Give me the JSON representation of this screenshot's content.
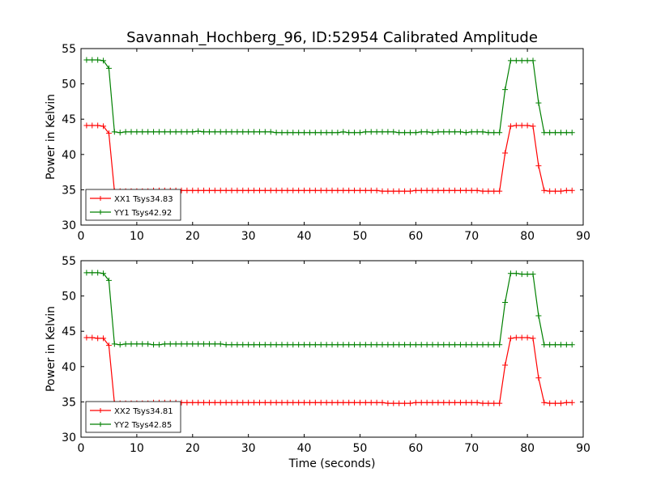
{
  "title": "Savannah_Hochberg_96, ID:52954 Calibrated Amplitude",
  "colors": {
    "xx": "#ff0000",
    "yy": "#008000"
  },
  "chart_data": [
    {
      "type": "line",
      "xlabel": "",
      "ylabel": "Power in Kelvin",
      "xlim": [
        0,
        90
      ],
      "ylim": [
        30,
        55
      ],
      "xticks": [
        0,
        10,
        20,
        30,
        40,
        50,
        60,
        70,
        80,
        90
      ],
      "yticks": [
        30,
        35,
        40,
        45,
        50,
        55
      ],
      "grid": false,
      "legend_position": "lower-left",
      "x": [
        1,
        2,
        3,
        4,
        5,
        6,
        7,
        8,
        9,
        10,
        11,
        12,
        13,
        14,
        15,
        16,
        17,
        18,
        19,
        20,
        21,
        22,
        23,
        24,
        25,
        26,
        27,
        28,
        29,
        30,
        31,
        32,
        33,
        34,
        35,
        36,
        37,
        38,
        39,
        40,
        41,
        42,
        43,
        44,
        45,
        46,
        47,
        48,
        49,
        50,
        51,
        52,
        53,
        54,
        55,
        56,
        57,
        58,
        59,
        60,
        61,
        62,
        63,
        64,
        65,
        66,
        67,
        68,
        69,
        70,
        71,
        72,
        73,
        74,
        75,
        76,
        77,
        78,
        79,
        80,
        81,
        82,
        83,
        84,
        85,
        86,
        87,
        88
      ],
      "series": [
        {
          "name": "XX1 Tsys34.83",
          "color": "#ff0000",
          "values": [
            44.1,
            44.1,
            44.1,
            44.0,
            43.0,
            34.8,
            34.8,
            34.8,
            34.8,
            34.8,
            34.8,
            34.8,
            34.9,
            34.9,
            34.9,
            34.9,
            34.9,
            34.9,
            34.9,
            34.9,
            34.9,
            34.9,
            34.9,
            34.9,
            34.9,
            34.9,
            34.9,
            34.9,
            34.9,
            34.9,
            34.9,
            34.9,
            34.9,
            34.9,
            34.9,
            34.9,
            34.9,
            34.9,
            34.9,
            34.9,
            34.9,
            34.9,
            34.9,
            34.9,
            34.9,
            34.9,
            34.9,
            34.9,
            34.9,
            34.9,
            34.9,
            34.9,
            34.9,
            34.8,
            34.8,
            34.8,
            34.8,
            34.8,
            34.8,
            34.9,
            34.9,
            34.9,
            34.9,
            34.9,
            34.9,
            34.9,
            34.9,
            34.9,
            34.9,
            34.9,
            34.9,
            34.8,
            34.8,
            34.8,
            34.8,
            40.2,
            44.0,
            44.1,
            44.1,
            44.1,
            44.0,
            38.4,
            34.9,
            34.8,
            34.8,
            34.8,
            34.9,
            34.9
          ]
        },
        {
          "name": "YY1 Tsys42.92",
          "color": "#008000",
          "values": [
            53.4,
            53.4,
            53.4,
            53.3,
            52.2,
            43.2,
            43.1,
            43.2,
            43.2,
            43.2,
            43.2,
            43.2,
            43.2,
            43.2,
            43.2,
            43.2,
            43.2,
            43.2,
            43.2,
            43.2,
            43.3,
            43.2,
            43.2,
            43.2,
            43.2,
            43.2,
            43.2,
            43.2,
            43.2,
            43.2,
            43.2,
            43.2,
            43.2,
            43.2,
            43.1,
            43.1,
            43.1,
            43.1,
            43.1,
            43.1,
            43.1,
            43.1,
            43.1,
            43.1,
            43.1,
            43.1,
            43.2,
            43.1,
            43.1,
            43.1,
            43.2,
            43.2,
            43.2,
            43.2,
            43.2,
            43.2,
            43.1,
            43.1,
            43.1,
            43.1,
            43.2,
            43.2,
            43.1,
            43.2,
            43.2,
            43.2,
            43.2,
            43.2,
            43.1,
            43.2,
            43.2,
            43.2,
            43.1,
            43.1,
            43.1,
            49.2,
            53.3,
            53.3,
            53.3,
            53.3,
            53.3,
            47.3,
            43.1,
            43.1,
            43.1,
            43.1,
            43.1,
            43.1
          ]
        }
      ]
    },
    {
      "type": "line",
      "xlabel": "Time (seconds)",
      "ylabel": "Power in Kelvin",
      "xlim": [
        0,
        90
      ],
      "ylim": [
        30,
        55
      ],
      "xticks": [
        0,
        10,
        20,
        30,
        40,
        50,
        60,
        70,
        80,
        90
      ],
      "yticks": [
        30,
        35,
        40,
        45,
        50,
        55
      ],
      "grid": false,
      "legend_position": "lower-left",
      "x": [
        1,
        2,
        3,
        4,
        5,
        6,
        7,
        8,
        9,
        10,
        11,
        12,
        13,
        14,
        15,
        16,
        17,
        18,
        19,
        20,
        21,
        22,
        23,
        24,
        25,
        26,
        27,
        28,
        29,
        30,
        31,
        32,
        33,
        34,
        35,
        36,
        37,
        38,
        39,
        40,
        41,
        42,
        43,
        44,
        45,
        46,
        47,
        48,
        49,
        50,
        51,
        52,
        53,
        54,
        55,
        56,
        57,
        58,
        59,
        60,
        61,
        62,
        63,
        64,
        65,
        66,
        67,
        68,
        69,
        70,
        71,
        72,
        73,
        74,
        75,
        76,
        77,
        78,
        79,
        80,
        81,
        82,
        83,
        84,
        85,
        86,
        87,
        88
      ],
      "series": [
        {
          "name": "XX2 Tsys34.81",
          "color": "#ff0000",
          "values": [
            44.1,
            44.1,
            44.0,
            44.0,
            43.0,
            34.8,
            34.8,
            34.8,
            34.8,
            34.8,
            34.8,
            34.8,
            34.9,
            34.9,
            34.9,
            34.9,
            34.9,
            34.9,
            34.9,
            34.9,
            34.9,
            34.9,
            34.9,
            34.9,
            34.9,
            34.9,
            34.9,
            34.9,
            34.9,
            34.9,
            34.9,
            34.9,
            34.9,
            34.9,
            34.9,
            34.9,
            34.9,
            34.9,
            34.9,
            34.9,
            34.9,
            34.9,
            34.9,
            34.9,
            34.9,
            34.9,
            34.9,
            34.9,
            34.9,
            34.9,
            34.9,
            34.9,
            34.9,
            34.9,
            34.8,
            34.8,
            34.8,
            34.8,
            34.8,
            34.9,
            34.9,
            34.9,
            34.9,
            34.9,
            34.9,
            34.9,
            34.9,
            34.9,
            34.9,
            34.9,
            34.9,
            34.8,
            34.8,
            34.8,
            34.8,
            40.2,
            44.0,
            44.1,
            44.1,
            44.1,
            44.0,
            38.4,
            34.9,
            34.8,
            34.8,
            34.8,
            34.9,
            34.9
          ]
        },
        {
          "name": "YY2 Tsys42.85",
          "color": "#008000",
          "values": [
            53.3,
            53.3,
            53.3,
            53.2,
            52.2,
            43.2,
            43.1,
            43.2,
            43.2,
            43.2,
            43.2,
            43.2,
            43.1,
            43.1,
            43.2,
            43.2,
            43.2,
            43.2,
            43.2,
            43.2,
            43.2,
            43.2,
            43.2,
            43.2,
            43.2,
            43.1,
            43.1,
            43.1,
            43.1,
            43.1,
            43.1,
            43.1,
            43.1,
            43.1,
            43.1,
            43.1,
            43.1,
            43.1,
            43.1,
            43.1,
            43.1,
            43.1,
            43.1,
            43.1,
            43.1,
            43.1,
            43.1,
            43.1,
            43.1,
            43.1,
            43.1,
            43.1,
            43.1,
            43.1,
            43.1,
            43.1,
            43.1,
            43.1,
            43.1,
            43.1,
            43.1,
            43.1,
            43.1,
            43.1,
            43.1,
            43.1,
            43.1,
            43.1,
            43.1,
            43.1,
            43.1,
            43.1,
            43.1,
            43.1,
            43.1,
            49.1,
            53.2,
            53.2,
            53.1,
            53.1,
            53.1,
            47.2,
            43.1,
            43.1,
            43.1,
            43.1,
            43.1,
            43.1
          ]
        }
      ]
    }
  ]
}
